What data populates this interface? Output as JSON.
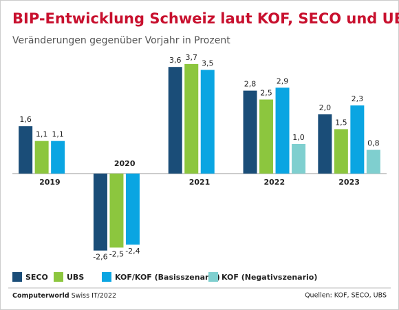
{
  "chart_data": {
    "type": "bar",
    "title": "BIP-Entwicklung Schweiz laut KOF, SECO und UBS",
    "subtitle": "Veränderungen gegenüber Vorjahr in Prozent",
    "categories": [
      "2019",
      "2020",
      "2021",
      "2022",
      "2023"
    ],
    "series": [
      {
        "name": "SECO",
        "color": "#1a4d78",
        "values": [
          1.6,
          -2.6,
          3.6,
          2.8,
          2.0
        ],
        "value_labels": [
          "1,6",
          "-2,6",
          "3,6",
          "2,8",
          "2,0"
        ]
      },
      {
        "name": "UBS",
        "color": "#8cc63e",
        "values": [
          1.1,
          -2.5,
          3.7,
          2.5,
          1.5
        ],
        "value_labels": [
          "1,1",
          "-2,5",
          "3,7",
          "2,5",
          "1,5"
        ]
      },
      {
        "name": "KOF/KOF (Basisszenario)",
        "color": "#0aa5e2",
        "values": [
          1.1,
          -2.4,
          3.5,
          2.9,
          2.3
        ],
        "value_labels": [
          "1,1",
          "-2,4",
          "3,5",
          "2,9",
          "2,3"
        ]
      },
      {
        "name": "KOF (Negativszenario)",
        "color": "#7fcfcf",
        "values": [
          null,
          null,
          null,
          1.0,
          0.8
        ],
        "value_labels": [
          null,
          null,
          null,
          "1,0",
          "0,8"
        ]
      }
    ],
    "ylim": [
      -2.7,
      4.0
    ],
    "brand": "Computerworld",
    "brand_note": "Swiss IT/2022",
    "source": "Quellen: KOF, SECO, UBS"
  }
}
